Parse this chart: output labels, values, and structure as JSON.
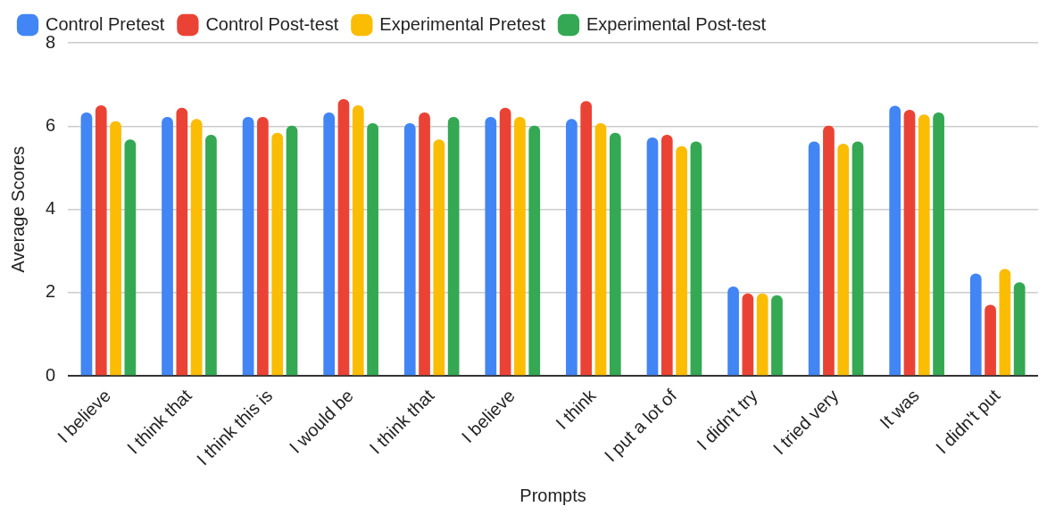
{
  "chart_data": {
    "type": "bar",
    "xlabel": "Prompts",
    "ylabel": "Average Scores",
    "categories": [
      "I believe",
      "I think that",
      "I think this is",
      "I would be",
      "I think that",
      "I believe",
      "I think",
      "I put a lot of",
      "I didn't try",
      "I tried very",
      "It was",
      "I didn't put"
    ],
    "series": [
      {
        "name": "Control Pretest",
        "color": "#4285f4",
        "values": [
          6.33,
          6.22,
          6.22,
          6.33,
          6.07,
          6.22,
          6.17,
          5.73,
          2.15,
          5.63,
          6.49,
          2.46
        ]
      },
      {
        "name": "Control Post-test",
        "color": "#ea4335",
        "values": [
          6.5,
          6.44,
          6.22,
          6.65,
          6.33,
          6.44,
          6.6,
          5.79,
          1.98,
          6.01,
          6.39,
          1.71
        ]
      },
      {
        "name": "Experimental Pretest",
        "color": "#fbbc04",
        "values": [
          6.12,
          6.17,
          5.84,
          6.5,
          5.68,
          6.22,
          6.07,
          5.52,
          1.98,
          5.58,
          6.28,
          2.57
        ]
      },
      {
        "name": "Experimental Post-test",
        "color": "#34a853",
        "values": [
          5.68,
          5.79,
          6.01,
          6.07,
          6.22,
          6.01,
          5.84,
          5.63,
          1.94,
          5.63,
          6.33,
          2.25
        ]
      }
    ],
    "ylim": [
      0,
      8
    ],
    "yticks": [
      0,
      2,
      4,
      6,
      8
    ],
    "grid": "y",
    "legend": "top left"
  }
}
